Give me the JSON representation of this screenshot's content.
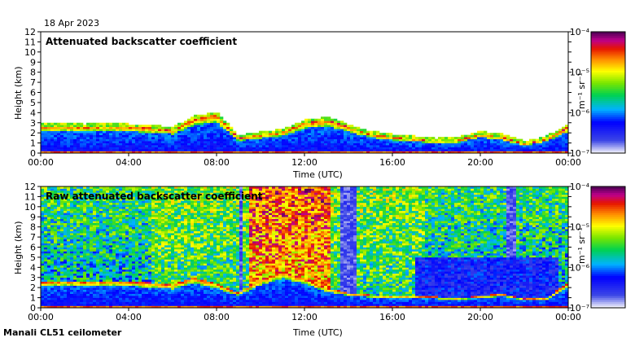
{
  "date": "18 Apr 2023",
  "footer": "Manali CL51 ceilometer",
  "chart_data": [
    {
      "type": "heatmap",
      "title": "Attenuated backscatter coefficient",
      "xlabel": "Time (UTC)",
      "ylabel": "Height (km)",
      "xticks": [
        "00:00",
        "04:00",
        "08:00",
        "12:00",
        "16:00",
        "20:00",
        "00:00"
      ],
      "xlim_hours": [
        0,
        24
      ],
      "ylim": [
        0,
        12
      ],
      "yticks": [
        0,
        1,
        2,
        3,
        4,
        5,
        6,
        7,
        8,
        9,
        10,
        11,
        12
      ],
      "colorbar": {
        "label": "m⁻¹ sr⁻¹",
        "ticks": [
          "10⁻⁷",
          "10⁻⁶",
          "10⁻⁵",
          "10⁻⁴"
        ],
        "range": [
          -7,
          -4
        ]
      },
      "boundary_layer_top_km": [
        2.6,
        2.7,
        2.6,
        2.7,
        2.6,
        2.5,
        2.3,
        3.4,
        3.8,
        1.5,
        1.8,
        2.1,
        3.0,
        3.3,
        2.6,
        1.9,
        1.6,
        1.4,
        1.2,
        1.3,
        1.9,
        1.6,
        0.9,
        1.4,
        2.6
      ],
      "noise": "low",
      "clear_gaps_hours": []
    },
    {
      "type": "heatmap",
      "title": "Raw attenuated backscatter coefficient",
      "xlabel": "Time (UTC)",
      "ylabel": "Height (km)",
      "xticks": [
        "00:00",
        "04:00",
        "08:00",
        "12:00",
        "16:00",
        "20:00",
        "00:00"
      ],
      "xlim_hours": [
        0,
        24
      ],
      "ylim": [
        0,
        12
      ],
      "yticks": [
        0,
        1,
        2,
        3,
        4,
        5,
        6,
        7,
        8,
        9,
        10,
        11,
        12
      ],
      "colorbar": {
        "label": "m⁻¹ sr⁻¹",
        "ticks": [
          "10⁻⁷",
          "10⁻⁶",
          "10⁻⁵",
          "10⁻⁴"
        ],
        "range": [
          -7,
          -4
        ]
      },
      "boundary_layer_top_km": [
        2.6,
        2.7,
        2.6,
        2.7,
        2.6,
        2.5,
        2.3,
        3.0,
        2.4,
        1.5,
        2.8,
        3.6,
        2.9,
        2.0,
        1.5,
        1.3,
        1.2,
        1.2,
        1.1,
        1.0,
        1.2,
        1.4,
        0.9,
        1.0,
        2.5
      ],
      "noise": "high",
      "clear_gaps_hours": [
        [
          13.6,
          14.3
        ],
        [
          21.2,
          21.6
        ],
        [
          9.0,
          9.2
        ]
      ]
    }
  ]
}
